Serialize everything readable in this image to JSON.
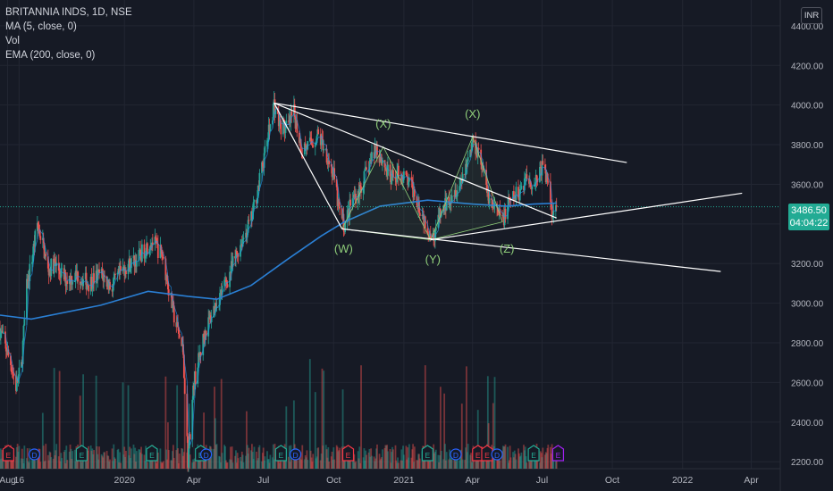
{
  "chart_data": {
    "type": "candlestick",
    "header": {
      "symbol_line": "BRITANNIA INDS, 1D, NSE",
      "indicators": [
        "MA (5, close, 0)",
        "Vol",
        "EMA (200, close, 0)"
      ]
    },
    "currency": "INR",
    "y_ticks": [
      2200,
      2400,
      2600,
      2800,
      3000,
      3200,
      3400,
      3600,
      3800,
      4000,
      4200,
      4400
    ],
    "y_tick_labels": [
      "2200.00",
      "2400.00",
      "2600.00",
      "2800.00",
      "3000.00",
      "3200.00",
      "3400.00",
      "3600.00",
      "3800.00",
      "4000.00",
      "4200.00",
      "4400.00"
    ],
    "ylim": [
      2165,
      4530
    ],
    "xlim": [
      "2019-07-22",
      "2022-05-09"
    ],
    "x_ticks": [
      {
        "date": "2019-08-01",
        "label": "Aug"
      },
      {
        "date": "2019-08-16",
        "label": "16"
      },
      {
        "date": "2020-01-01",
        "label": "2020"
      },
      {
        "date": "2020-04-01",
        "label": "Apr"
      },
      {
        "date": "2020-07-01",
        "label": "Jul"
      },
      {
        "date": "2020-10-01",
        "label": "Oct"
      },
      {
        "date": "2021-01-01",
        "label": "2021"
      },
      {
        "date": "2021-04-01",
        "label": "Apr"
      },
      {
        "date": "2021-07-01",
        "label": "Jul"
      },
      {
        "date": "2021-10-01",
        "label": "Oct"
      },
      {
        "date": "2022-01-01",
        "label": "2022"
      },
      {
        "date": "2022-04-01",
        "label": "Apr"
      }
    ],
    "price_path": [
      [
        "2019-07-22",
        2870
      ],
      [
        "2019-07-29",
        2780
      ],
      [
        "2019-08-05",
        2700
      ],
      [
        "2019-08-12",
        2580
      ],
      [
        "2019-08-19",
        2680
      ],
      [
        "2019-08-26",
        3080
      ],
      [
        "2019-09-02",
        3230
      ],
      [
        "2019-09-09",
        3400
      ],
      [
        "2019-09-16",
        3300
      ],
      [
        "2019-09-23",
        3160
      ],
      [
        "2019-10-01",
        3200
      ],
      [
        "2019-10-15",
        3120
      ],
      [
        "2019-11-01",
        3140
      ],
      [
        "2019-11-15",
        3100
      ],
      [
        "2019-12-01",
        3150
      ],
      [
        "2019-12-15",
        3080
      ],
      [
        "2020-01-01",
        3180
      ],
      [
        "2020-01-20",
        3230
      ],
      [
        "2020-02-05",
        3320
      ],
      [
        "2020-02-20",
        3240
      ],
      [
        "2020-03-05",
        2950
      ],
      [
        "2020-03-18",
        2750
      ],
      [
        "2020-03-24",
        2210
      ],
      [
        "2020-04-01",
        2600
      ],
      [
        "2020-04-15",
        2850
      ],
      [
        "2020-04-30",
        3000
      ],
      [
        "2020-05-15",
        3120
      ],
      [
        "2020-06-01",
        3300
      ],
      [
        "2020-06-15",
        3420
      ],
      [
        "2020-06-25",
        3600
      ],
      [
        "2020-07-08",
        3860
      ],
      [
        "2020-07-15",
        4010
      ],
      [
        "2020-07-22",
        3900
      ],
      [
        "2020-08-01",
        3880
      ],
      [
        "2020-08-10",
        3960
      ],
      [
        "2020-08-20",
        3780
      ],
      [
        "2020-09-01",
        3800
      ],
      [
        "2020-09-10",
        3850
      ],
      [
        "2020-09-20",
        3780
      ],
      [
        "2020-10-01",
        3640
      ],
      [
        "2020-10-08",
        3470
      ],
      [
        "2020-10-15",
        3390
      ],
      [
        "2020-10-25",
        3520
      ],
      [
        "2020-11-05",
        3580
      ],
      [
        "2020-11-15",
        3680
      ],
      [
        "2020-11-25",
        3790
      ],
      [
        "2020-12-05",
        3710
      ],
      [
        "2020-12-15",
        3620
      ],
      [
        "2020-12-25",
        3660
      ],
      [
        "2021-01-05",
        3620
      ],
      [
        "2021-01-15",
        3560
      ],
      [
        "2021-01-25",
        3450
      ],
      [
        "2021-02-01",
        3390
      ],
      [
        "2021-02-08",
        3330
      ],
      [
        "2021-02-15",
        3420
      ],
      [
        "2021-02-25",
        3500
      ],
      [
        "2021-03-05",
        3560
      ],
      [
        "2021-03-15",
        3600
      ],
      [
        "2021-03-25",
        3720
      ],
      [
        "2021-04-01",
        3820
      ],
      [
        "2021-04-10",
        3760
      ],
      [
        "2021-04-20",
        3560
      ],
      [
        "2021-04-30",
        3470
      ],
      [
        "2021-05-10",
        3420
      ],
      [
        "2021-05-20",
        3510
      ],
      [
        "2021-06-01",
        3560
      ],
      [
        "2021-06-10",
        3640
      ],
      [
        "2021-06-20",
        3600
      ],
      [
        "2021-07-01",
        3690
      ],
      [
        "2021-07-08",
        3620
      ],
      [
        "2021-07-15",
        3450
      ],
      [
        "2021-07-20",
        3486.5
      ]
    ],
    "ma200_path": [
      [
        "2019-07-22",
        2940
      ],
      [
        "2019-09-01",
        2920
      ],
      [
        "2019-12-01",
        2990
      ],
      [
        "2020-02-01",
        3060
      ],
      [
        "2020-03-24",
        3035
      ],
      [
        "2020-05-01",
        3020
      ],
      [
        "2020-06-15",
        3090
      ],
      [
        "2020-08-01",
        3220
      ],
      [
        "2020-09-15",
        3340
      ],
      [
        "2020-10-15",
        3410
      ],
      [
        "2020-12-01",
        3490
      ],
      [
        "2021-02-01",
        3520
      ],
      [
        "2021-04-01",
        3500
      ],
      [
        "2021-05-15",
        3490
      ],
      [
        "2021-06-20",
        3500
      ],
      [
        "2021-07-20",
        3505
      ]
    ],
    "trendlines": [
      [
        [
          "2020-07-15",
          4010
        ],
        [
          "2021-10-20",
          3710
        ]
      ],
      [
        [
          "2020-07-15",
          4010
        ],
        [
          "2021-07-20",
          3430
        ]
      ],
      [
        [
          "2020-07-15",
          4010
        ],
        [
          "2020-10-12",
          3375
        ]
      ],
      [
        [
          "2020-10-12",
          3375
        ],
        [
          "2022-02-20",
          3160
        ]
      ],
      [
        [
          "2021-02-05",
          3320
        ],
        [
          "2022-03-20",
          3555
        ]
      ]
    ],
    "fib_triangles": [
      [
        [
          "2020-10-12",
          3375
        ],
        [
          "2020-12-05",
          3790
        ],
        [
          "2021-02-05",
          3320
        ]
      ],
      [
        [
          "2021-02-05",
          3320
        ],
        [
          "2021-04-01",
          3840
        ],
        [
          "2021-05-10",
          3410
        ]
      ]
    ],
    "wave_labels": [
      {
        "text": "(W)",
        "date": "2020-10-14",
        "price": 3255
      },
      {
        "text": "(X)",
        "date": "2020-12-05",
        "price": 3885
      },
      {
        "text": "(Y)",
        "date": "2021-02-08",
        "price": 3200
      },
      {
        "text": "(X)",
        "date": "2021-04-01",
        "price": 3935
      },
      {
        "text": "(Z)",
        "date": "2021-05-16",
        "price": 3255
      }
    ],
    "last_price": {
      "value": 3486.5,
      "label": "3486.50",
      "countdown": "04:04:22"
    },
    "event_markers": [
      {
        "date": "2019-08-02",
        "kind": "E",
        "color": "#f23645"
      },
      {
        "date": "2019-09-05",
        "kind": "D",
        "color": "#2962ff"
      },
      {
        "date": "2019-11-06",
        "kind": "E",
        "color": "#22ab94"
      },
      {
        "date": "2020-02-06",
        "kind": "E",
        "color": "#22ab94"
      },
      {
        "date": "2020-04-10",
        "kind": "E",
        "color": "#22ab94"
      },
      {
        "date": "2020-04-17",
        "kind": "D",
        "color": "#2962ff"
      },
      {
        "date": "2020-07-24",
        "kind": "E",
        "color": "#22ab94"
      },
      {
        "date": "2020-08-12",
        "kind": "D",
        "color": "#2962ff"
      },
      {
        "date": "2020-10-20",
        "kind": "E",
        "color": "#f23645"
      },
      {
        "date": "2021-02-01",
        "kind": "E",
        "color": "#22ab94"
      },
      {
        "date": "2021-03-10",
        "kind": "D",
        "color": "#2962ff"
      },
      {
        "date": "2021-04-08",
        "kind": "E",
        "color": "#f23645"
      },
      {
        "date": "2021-04-20",
        "kind": "E",
        "color": "#f23645"
      },
      {
        "date": "2021-05-03",
        "kind": "D",
        "color": "#2962ff"
      },
      {
        "date": "2021-06-20",
        "kind": "E",
        "color": "#22ab94"
      },
      {
        "date": "2021-07-22",
        "kind": "E",
        "color": "#a020f0"
      }
    ],
    "colors": {
      "up": "#26a69a",
      "down": "#ef5350",
      "ma5": "#2196f3",
      "ema200": "#2a7fd4",
      "drawings": "#ffffff",
      "waves": "#8fce7a"
    },
    "grid": true
  }
}
